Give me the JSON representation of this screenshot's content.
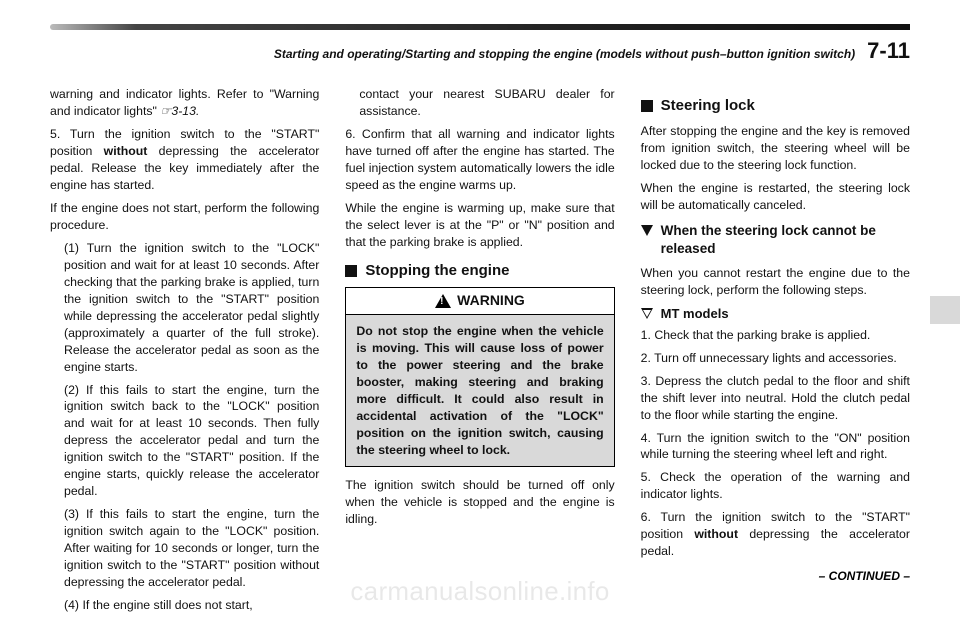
{
  "header": {
    "title": "Starting and operating/Starting and stopping the engine (models without push–button ignition switch)",
    "page": "7-11"
  },
  "col1": {
    "p1a": "warning and indicator lights. Refer to \"Warning and indicator lights\" ",
    "p1ref": "☞3-13.",
    "p2a": "5.  Turn the ignition switch to the \"START\" position ",
    "p2b": "without",
    "p2c": " depressing the accelerator pedal. Release the key immediately after the engine has started.",
    "p3": "If the engine does not start, perform the following procedure.",
    "s1": "(1) Turn the ignition switch to the \"LOCK\" position and wait for at least 10 seconds. After checking that the parking brake is applied, turn the ignition switch to the \"START\" position while depressing the accelerator pedal slightly (approximately a quarter of the full stroke). Release the accelerator pedal as soon as the engine starts.",
    "s2": "(2) If this fails to start the engine, turn the ignition switch back to the \"LOCK\" position and wait for at least 10 seconds. Then fully depress the accelerator pedal and turn the ignition switch to the \"START\" position. If the engine starts, quickly release the accelerator pedal.",
    "s3": "(3) If this fails to start the engine, turn the ignition switch again to the \"LOCK\" position. After waiting for 10 seconds or longer, turn the ignition switch to the \"START\" position without depressing the accelerator pedal.",
    "s4": "(4) If the engine still does not start,"
  },
  "col2": {
    "s4cont": "contact your nearest SUBARU dealer for assistance.",
    "p1": "6.  Confirm that all warning and indicator lights have turned off after the engine has started. The fuel injection system automatically lowers the idle speed as the engine warms up.",
    "p2": "While the engine is warming up, make sure that the select lever is at the \"P\" or \"N\" position and that the parking brake is applied.",
    "h_stop": "Stopping the engine",
    "warn_title": "WARNING",
    "warn_body": "Do not stop the engine when the vehicle is moving. This will cause loss of power to the power steering and the brake booster, making steering and braking more difficult. It could also result in accidental activation of the \"LOCK\" position on the ignition switch, causing the steering wheel to lock.",
    "p3": "The ignition switch should be turned off only when the vehicle is stopped and the engine is idling."
  },
  "col3": {
    "h_lock": "Steering lock",
    "p1": "After stopping the engine and the key is removed from ignition switch, the steering wheel will be locked due to the steering lock function.",
    "p2": "When the engine is restarted, the steering lock will be automatically canceled.",
    "h_release": "When the steering lock cannot be released",
    "p3": "When you cannot restart the engine due to the steering lock, perform the following steps.",
    "h_mt": "MT models",
    "m1": "1.  Check that the parking brake is applied.",
    "m2": "2.  Turn off unnecessary lights and accessories.",
    "m3": "3.  Depress the clutch pedal to the floor and shift the shift lever into neutral. Hold the clutch pedal to the floor while starting the engine.",
    "m4": "4.  Turn the ignition switch to the \"ON\" position while turning the steering wheel left and right.",
    "m5": "5.  Check the operation of the warning and indicator lights.",
    "m6a": "6.  Turn the ignition switch to the \"START\" position ",
    "m6b": "without",
    "m6c": " depressing the accelerator pedal."
  },
  "footer": {
    "continued": "– CONTINUED –",
    "watermark": "carmanualsonline.info"
  }
}
